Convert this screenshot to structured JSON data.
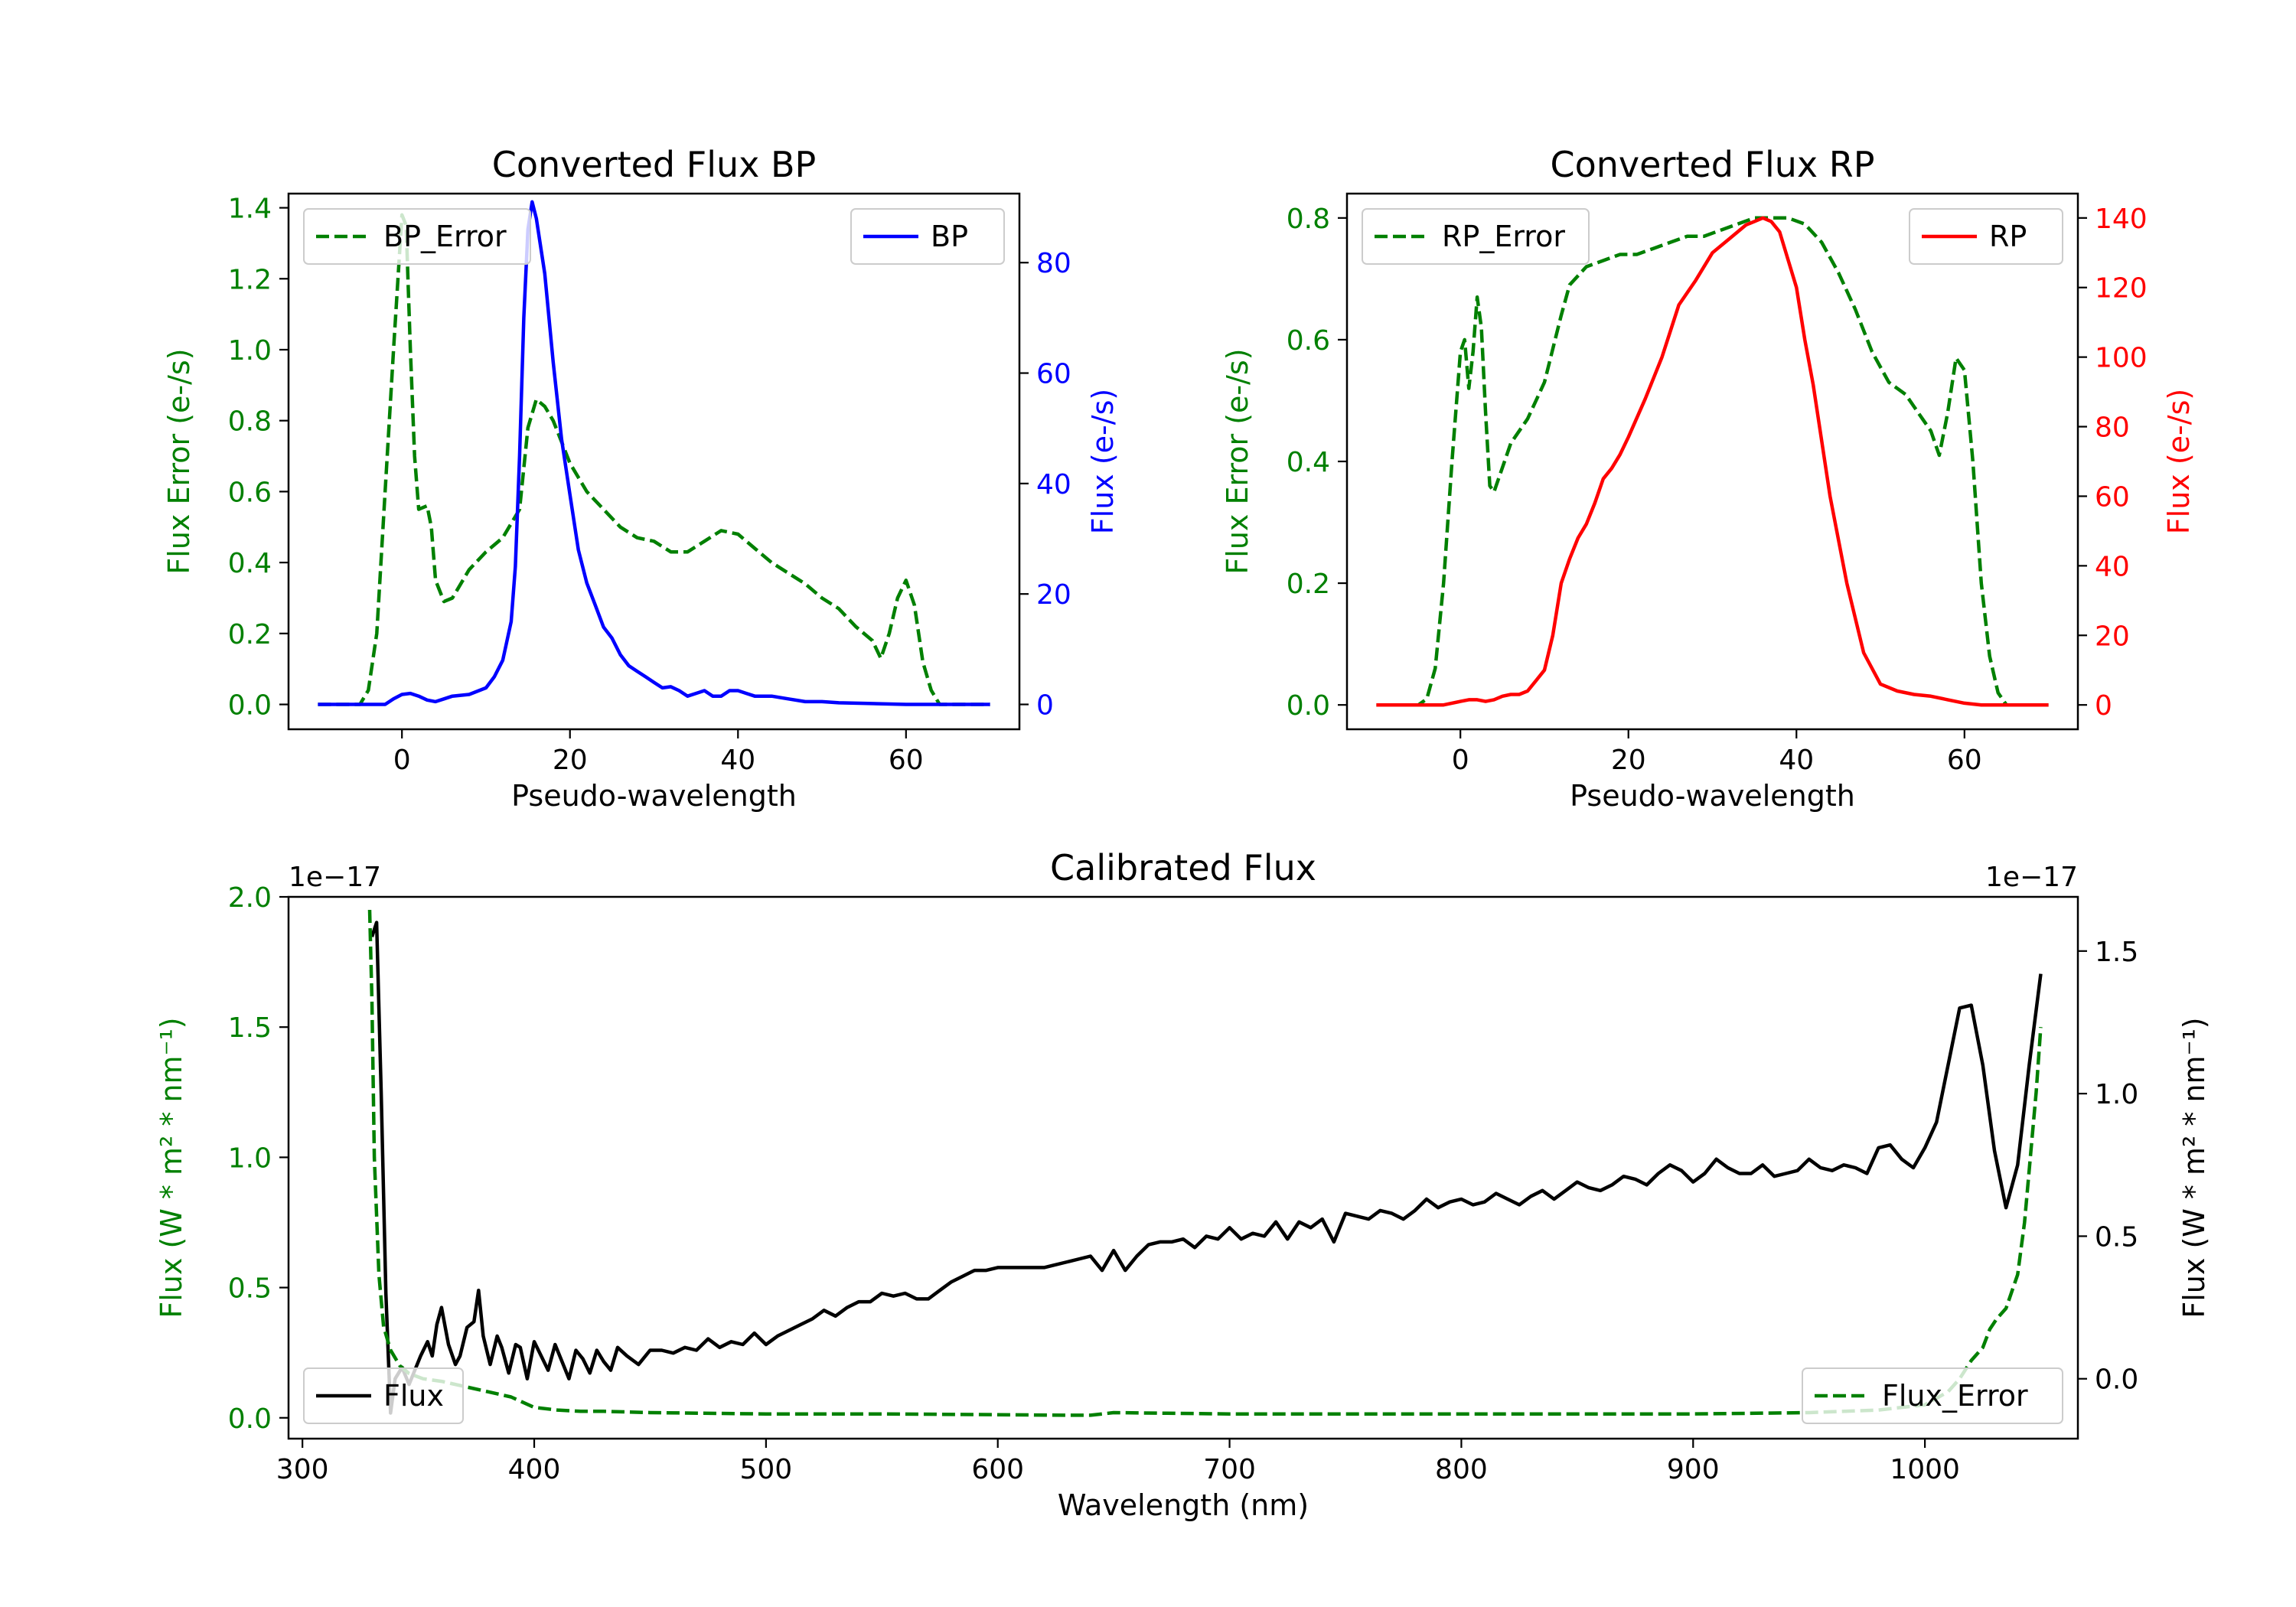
{
  "colors": {
    "bp": "#0000ff",
    "rp": "#ff0000",
    "error": "#008000",
    "flux": "#000000",
    "text": "#000000"
  },
  "chart_data": [
    {
      "type": "line",
      "id": "bp",
      "title": "Converted Flux BP",
      "xlabel": "Pseudo-wavelength",
      "ylabel_left": "Flux Error (e-/s)",
      "ylabel_right": "Flux (e-/s)",
      "xlim": [
        -13.5,
        73.5
      ],
      "ylim_left": [
        -0.07,
        1.44
      ],
      "ylim_right": [
        -4.5,
        92.5
      ],
      "xticks": [
        0,
        20,
        40,
        60
      ],
      "yticks_left": [
        0.0,
        0.2,
        0.4,
        0.6,
        0.8,
        1.0,
        1.2,
        1.4
      ],
      "yticks_left_labels": [
        "0.0",
        "0.2",
        "0.4",
        "0.6",
        "0.8",
        "1.0",
        "1.2",
        "1.4"
      ],
      "yticks_right": [
        0,
        20,
        40,
        60,
        80
      ],
      "yticks_right_labels": [
        "0",
        "20",
        "40",
        "60",
        "80"
      ],
      "left_legend": "BP_Error",
      "right_legend": "BP",
      "series": [
        {
          "name": "BP_Error",
          "axis": "left",
          "style": "dashed",
          "x": [
            -10,
            -5,
            -4,
            -3,
            -2,
            -1,
            0,
            0.5,
            1,
            1.5,
            2,
            3,
            3.5,
            4,
            5,
            6,
            8,
            10,
            12,
            14,
            15,
            16,
            17,
            18,
            19,
            20,
            22,
            24,
            26,
            28,
            30,
            32,
            34,
            36,
            38,
            40,
            42,
            44,
            46,
            48,
            50,
            52,
            54,
            56,
            57,
            58,
            59,
            60,
            61,
            62,
            63,
            64,
            65,
            70
          ],
          "y": [
            0.0,
            0.0,
            0.04,
            0.2,
            0.6,
            1.0,
            1.38,
            1.35,
            1.0,
            0.7,
            0.55,
            0.56,
            0.5,
            0.35,
            0.29,
            0.3,
            0.38,
            0.43,
            0.47,
            0.55,
            0.78,
            0.86,
            0.84,
            0.8,
            0.74,
            0.68,
            0.6,
            0.55,
            0.5,
            0.47,
            0.46,
            0.43,
            0.43,
            0.46,
            0.49,
            0.48,
            0.44,
            0.4,
            0.37,
            0.34,
            0.3,
            0.27,
            0.22,
            0.18,
            0.13,
            0.2,
            0.3,
            0.35,
            0.28,
            0.12,
            0.04,
            0.0,
            0.0,
            0.0
          ]
        },
        {
          "name": "BP",
          "axis": "right",
          "style": "solid",
          "x": [
            -10,
            -5,
            -2,
            -1,
            0,
            1,
            2,
            3,
            4,
            5,
            6,
            8,
            10,
            11,
            12,
            13,
            13.5,
            14,
            14.5,
            15,
            15.5,
            16,
            17,
            18,
            19,
            20,
            21,
            22,
            23,
            24,
            25,
            26,
            27,
            28,
            29,
            30,
            31,
            32,
            33,
            34,
            35,
            36,
            37,
            38,
            39,
            40,
            41,
            42,
            44,
            46,
            48,
            50,
            52,
            55,
            60,
            65,
            70
          ],
          "y": [
            0,
            0,
            0,
            1,
            1.8,
            2,
            1.5,
            0.8,
            0.5,
            1,
            1.5,
            1.8,
            3,
            5,
            8,
            15,
            25,
            45,
            70,
            86,
            91,
            88,
            78,
            62,
            48,
            38,
            28,
            22,
            18,
            14,
            12,
            9,
            7,
            6,
            5,
            4,
            3,
            3.2,
            2.5,
            1.5,
            2,
            2.5,
            1.5,
            1.5,
            2.5,
            2.5,
            2,
            1.5,
            1.5,
            1,
            0.5,
            0.5,
            0.3,
            0.2,
            0,
            0,
            0
          ]
        }
      ]
    },
    {
      "type": "line",
      "id": "rp",
      "title": "Converted Flux RP",
      "xlabel": "Pseudo-wavelength",
      "ylabel_left": "Flux Error (e-/s)",
      "ylabel_right": "Flux (e-/s)",
      "xlim": [
        -13.5,
        73.5
      ],
      "ylim_left": [
        -0.04,
        0.84
      ],
      "ylim_right": [
        -7,
        147
      ],
      "xticks": [
        0,
        20,
        40,
        60
      ],
      "yticks_left": [
        0.0,
        0.2,
        0.4,
        0.6,
        0.8
      ],
      "yticks_left_labels": [
        "0.0",
        "0.2",
        "0.4",
        "0.6",
        "0.8"
      ],
      "yticks_right": [
        0,
        20,
        40,
        60,
        80,
        100,
        120,
        140
      ],
      "yticks_right_labels": [
        "0",
        "20",
        "40",
        "60",
        "80",
        "100",
        "120",
        "140"
      ],
      "left_legend": "RP_Error",
      "right_legend": "RP",
      "series": [
        {
          "name": "RP_Error",
          "axis": "left",
          "style": "dashed",
          "x": [
            -10,
            -5,
            -4,
            -3,
            -2,
            -1,
            0,
            0.5,
            1,
            1.5,
            2,
            2.5,
            3,
            3.5,
            4,
            5,
            6,
            8,
            10,
            12,
            13,
            15,
            17,
            19,
            21,
            23,
            25,
            27,
            29,
            31,
            33,
            35,
            37,
            39,
            41,
            43,
            45,
            47,
            49,
            51,
            53,
            54,
            55,
            56,
            57,
            58,
            59,
            60,
            61,
            62,
            63,
            64,
            65,
            70
          ],
          "y": [
            0.0,
            0.0,
            0.01,
            0.06,
            0.2,
            0.4,
            0.58,
            0.6,
            0.52,
            0.58,
            0.67,
            0.62,
            0.48,
            0.36,
            0.35,
            0.39,
            0.43,
            0.47,
            0.53,
            0.64,
            0.69,
            0.72,
            0.73,
            0.74,
            0.74,
            0.75,
            0.76,
            0.77,
            0.77,
            0.78,
            0.79,
            0.8,
            0.8,
            0.8,
            0.79,
            0.76,
            0.71,
            0.65,
            0.58,
            0.53,
            0.51,
            0.49,
            0.47,
            0.45,
            0.41,
            0.48,
            0.57,
            0.55,
            0.4,
            0.2,
            0.08,
            0.02,
            0.0,
            0.0
          ]
        },
        {
          "name": "RP",
          "axis": "right",
          "style": "solid",
          "x": [
            -10,
            -5,
            -2,
            0,
            1,
            2,
            3,
            4,
            5,
            6,
            7,
            8,
            9,
            10,
            11,
            12,
            13,
            14,
            15,
            16,
            17,
            18,
            19,
            20,
            22,
            24,
            26,
            28,
            30,
            32,
            34,
            35,
            36,
            37,
            38,
            39,
            40,
            41,
            42,
            44,
            46,
            48,
            50,
            52,
            54,
            56,
            58,
            60,
            62,
            65,
            70
          ],
          "y": [
            0,
            0,
            0,
            1,
            1.5,
            1.5,
            1,
            1.5,
            2.5,
            3,
            3,
            4,
            7,
            10,
            20,
            35,
            42,
            48,
            52,
            58,
            65,
            68,
            72,
            77,
            88,
            100,
            115,
            122,
            130,
            134,
            138,
            139,
            140,
            139,
            136,
            128,
            120,
            105,
            92,
            60,
            35,
            15,
            6,
            4,
            3,
            2.5,
            1.5,
            0.5,
            0,
            0,
            0
          ]
        }
      ]
    },
    {
      "type": "line",
      "id": "calibrated",
      "title": "Calibrated Flux",
      "xlabel": "Wavelength (nm)",
      "ylabel_left": "Flux (W * m² * nm⁻¹)",
      "ylabel_right": "Flux (W * m² * nm⁻¹)",
      "offset_left": "1e−17",
      "offset_right": "1e−17",
      "xlim": [
        294,
        1066
      ],
      "ylim_left": [
        -0.08,
        2.0
      ],
      "ylim_right": [
        -0.21,
        1.69
      ],
      "xticks": [
        300,
        400,
        500,
        600,
        700,
        800,
        900,
        1000
      ],
      "yticks_left": [
        0.0,
        0.5,
        1.0,
        1.5,
        2.0
      ],
      "yticks_left_labels": [
        "0.0",
        "0.5",
        "1.0",
        "1.5",
        "2.0"
      ],
      "yticks_right": [
        0.0,
        0.5,
        1.0,
        1.5
      ],
      "yticks_right_labels": [
        "0.0",
        "0.5",
        "1.0",
        "1.5"
      ],
      "left_legend": "Flux",
      "right_legend": "Flux_Error",
      "series": [
        {
          "name": "Flux",
          "axis": "right",
          "style": "solid",
          "x": [
            330,
            332,
            334,
            336,
            338,
            340,
            343,
            346,
            348,
            351,
            354,
            356,
            358,
            360,
            363,
            366,
            368,
            371,
            374,
            376,
            378,
            381,
            384,
            386,
            389,
            392,
            394,
            397,
            400,
            403,
            406,
            409,
            412,
            415,
            418,
            421,
            424,
            427,
            430,
            433,
            436,
            440,
            445,
            450,
            455,
            460,
            465,
            470,
            475,
            480,
            485,
            490,
            495,
            500,
            505,
            510,
            515,
            520,
            525,
            530,
            535,
            540,
            545,
            550,
            555,
            560,
            565,
            570,
            575,
            580,
            585,
            590,
            595,
            600,
            610,
            620,
            630,
            640,
            645,
            650,
            655,
            660,
            665,
            670,
            675,
            680,
            685,
            690,
            695,
            700,
            705,
            710,
            715,
            720,
            725,
            730,
            735,
            740,
            745,
            750,
            755,
            760,
            765,
            770,
            775,
            780,
            785,
            790,
            795,
            800,
            805,
            810,
            815,
            820,
            825,
            830,
            835,
            840,
            845,
            850,
            855,
            860,
            865,
            870,
            875,
            880,
            885,
            890,
            895,
            900,
            905,
            910,
            915,
            920,
            925,
            930,
            935,
            940,
            945,
            950,
            955,
            960,
            965,
            970,
            975,
            980,
            985,
            990,
            995,
            1000,
            1005,
            1010,
            1015,
            1020,
            1025,
            1030,
            1035,
            1040,
            1045,
            1050
          ],
          "y": [
            1.55,
            1.6,
            1.0,
            0.3,
            -0.12,
            0.0,
            0.04,
            -0.02,
            0.02,
            0.08,
            0.13,
            0.08,
            0.19,
            0.25,
            0.12,
            0.05,
            0.08,
            0.18,
            0.2,
            0.31,
            0.15,
            0.05,
            0.15,
            0.11,
            0.02,
            0.12,
            0.11,
            0.0,
            0.13,
            0.08,
            0.03,
            0.12,
            0.06,
            0.0,
            0.1,
            0.07,
            0.02,
            0.1,
            0.06,
            0.03,
            0.11,
            0.08,
            0.05,
            0.1,
            0.1,
            0.09,
            0.11,
            0.1,
            0.14,
            0.11,
            0.13,
            0.12,
            0.16,
            0.12,
            0.15,
            0.17,
            0.19,
            0.21,
            0.24,
            0.22,
            0.25,
            0.27,
            0.27,
            0.3,
            0.29,
            0.3,
            0.28,
            0.28,
            0.31,
            0.34,
            0.36,
            0.38,
            0.38,
            0.39,
            0.39,
            0.39,
            0.41,
            0.43,
            0.38,
            0.45,
            0.38,
            0.43,
            0.47,
            0.48,
            0.48,
            0.49,
            0.46,
            0.5,
            0.49,
            0.53,
            0.49,
            0.51,
            0.5,
            0.55,
            0.49,
            0.55,
            0.53,
            0.56,
            0.48,
            0.58,
            0.57,
            0.56,
            0.59,
            0.58,
            0.56,
            0.59,
            0.63,
            0.6,
            0.62,
            0.63,
            0.61,
            0.62,
            0.65,
            0.63,
            0.61,
            0.64,
            0.66,
            0.63,
            0.66,
            0.69,
            0.67,
            0.66,
            0.68,
            0.71,
            0.7,
            0.68,
            0.72,
            0.75,
            0.73,
            0.69,
            0.72,
            0.77,
            0.74,
            0.72,
            0.72,
            0.75,
            0.71,
            0.72,
            0.73,
            0.77,
            0.74,
            0.73,
            0.75,
            0.74,
            0.72,
            0.81,
            0.82,
            0.77,
            0.74,
            0.81,
            0.9,
            1.1,
            1.3,
            1.31,
            1.1,
            0.8,
            0.6,
            0.75,
            1.1,
            1.42
          ]
        },
        {
          "name": "Flux_Error",
          "axis": "left",
          "style": "dashed",
          "x": [
            329,
            330,
            331,
            333,
            335,
            338,
            342,
            346,
            352,
            360,
            370,
            380,
            390,
            400,
            410,
            420,
            430,
            450,
            500,
            550,
            600,
            630,
            640,
            650,
            700,
            750,
            800,
            850,
            900,
            950,
            980,
            1000,
            1010,
            1015,
            1020,
            1025,
            1028,
            1031,
            1035,
            1040,
            1043,
            1046,
            1048,
            1050
          ],
          "y": [
            1.95,
            1.6,
            1.0,
            0.55,
            0.35,
            0.26,
            0.2,
            0.17,
            0.15,
            0.14,
            0.12,
            0.1,
            0.08,
            0.04,
            0.03,
            0.025,
            0.025,
            0.02,
            0.015,
            0.015,
            0.012,
            0.01,
            0.01,
            0.02,
            0.015,
            0.015,
            0.015,
            0.015,
            0.015,
            0.02,
            0.03,
            0.05,
            0.1,
            0.15,
            0.22,
            0.27,
            0.34,
            0.38,
            0.42,
            0.55,
            0.75,
            1.05,
            1.25,
            1.5
          ]
        }
      ]
    }
  ]
}
